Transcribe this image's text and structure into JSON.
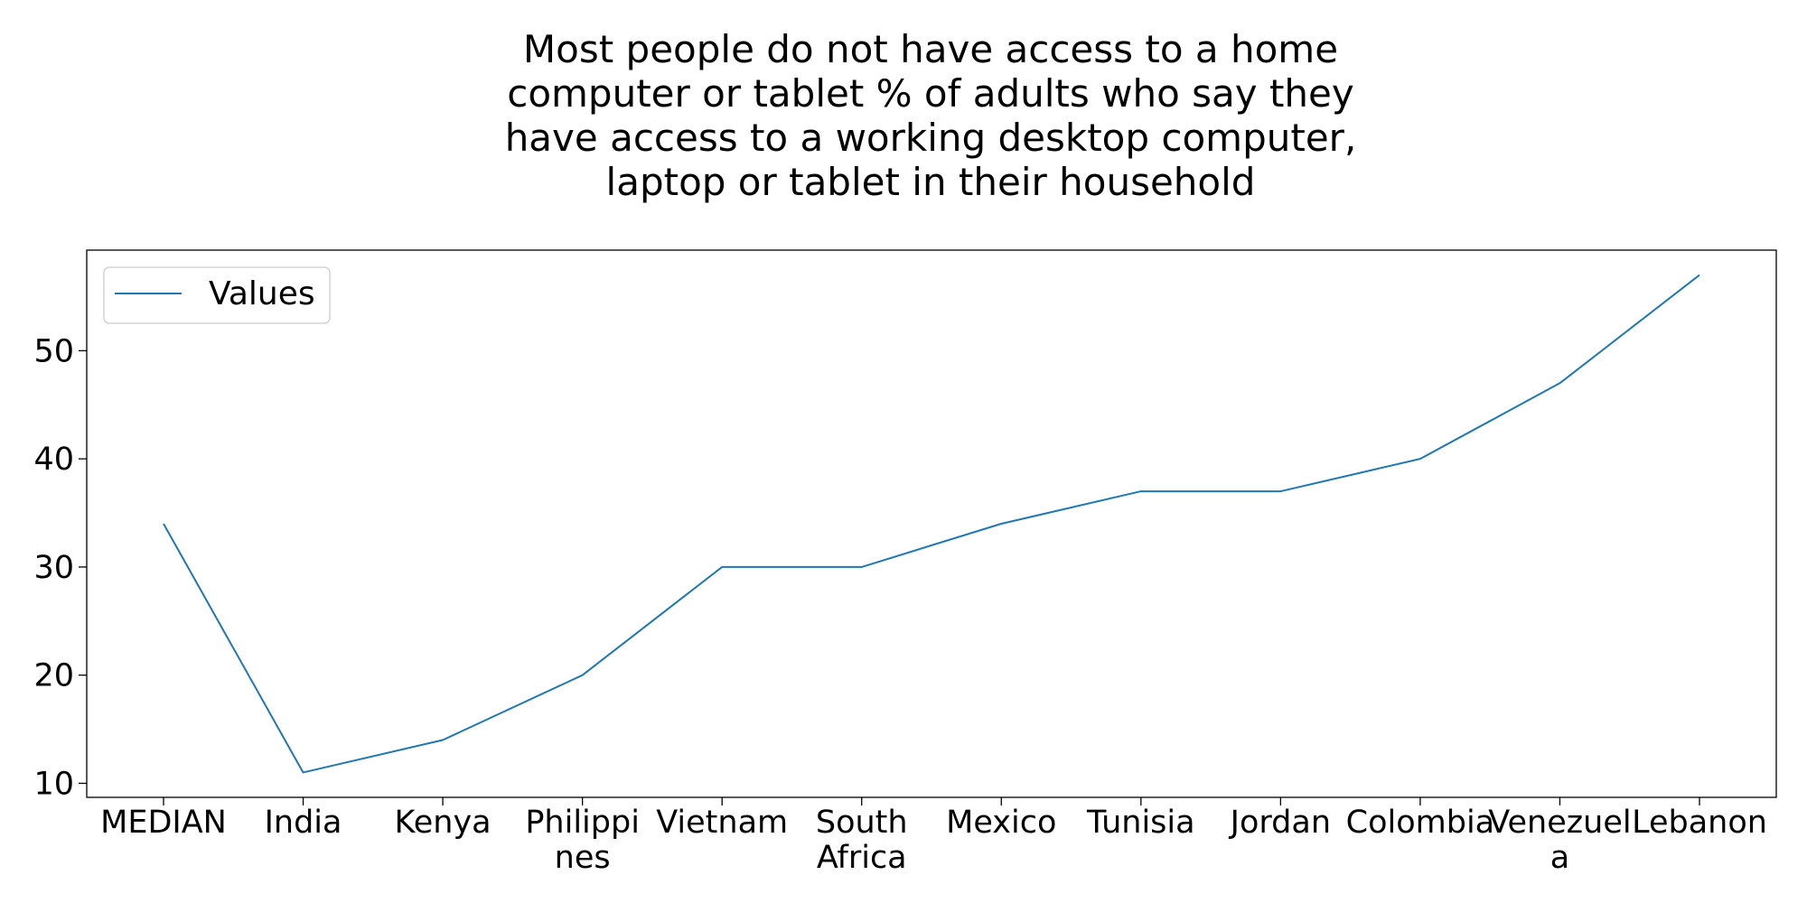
{
  "chart_data": {
    "type": "line",
    "title": "Most people do not have access to a home computer or tablet % of adults who say they have access to a working desktop computer, laptop or tablet in their household",
    "categories": [
      "MEDIAN",
      "India",
      "Kenya",
      "Philippines",
      "Vietnam",
      "South Africa",
      "Mexico",
      "Tunisia",
      "Jordan",
      "Colombia",
      "Venezuela",
      "Lebanon"
    ],
    "category_lines": [
      [
        "MEDIAN"
      ],
      [
        "India"
      ],
      [
        "Kenya"
      ],
      [
        "Philippi",
        "nes"
      ],
      [
        "Vietnam"
      ],
      [
        "South",
        "Africa"
      ],
      [
        "Mexico"
      ],
      [
        "Tunisia"
      ],
      [
        "Jordan"
      ],
      [
        "Colombia"
      ],
      [
        "Venezuel",
        "a"
      ],
      [
        "Lebanon"
      ]
    ],
    "series": [
      {
        "name": "Values",
        "values": [
          34,
          11,
          14,
          20,
          30,
          30,
          34,
          37,
          37,
          40,
          47,
          57
        ],
        "color": "#1f77b4"
      }
    ],
    "ylim": [
      8.7,
      59.3
    ],
    "yticks": [
      10,
      20,
      30,
      40,
      50
    ],
    "xlabel": "",
    "ylabel": "",
    "grid": false,
    "legend_position": "top-left"
  }
}
